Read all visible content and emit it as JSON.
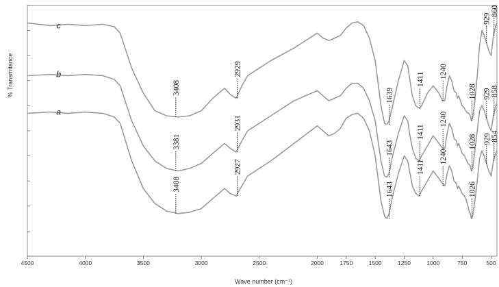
{
  "chart_data": {
    "type": "line",
    "title": "",
    "xlabel": "Wave number (cm⁻¹)",
    "ylabel": "% Transmitance",
    "xlim": [
      4500,
      450
    ],
    "ylim": [
      0,
      100
    ],
    "x_ticks": [
      4500,
      4000,
      3500,
      3000,
      2500,
      2000,
      1750,
      1500,
      1250,
      1000,
      750,
      500
    ],
    "grid": false,
    "series": [
      {
        "name": "c",
        "x": [
          4500,
          4300,
          4150,
          4000,
          3850,
          3750,
          3700,
          3600,
          3500,
          3400,
          3300,
          3200,
          3100,
          3000,
          2900,
          2800,
          2750,
          2700,
          2650,
          2600,
          2400,
          2200,
          2000,
          1950,
          1900,
          1850,
          1800,
          1750,
          1700,
          1650,
          1600,
          1550,
          1500,
          1450,
          1420,
          1400,
          1380,
          1350,
          1300,
          1250,
          1220,
          1200,
          1180,
          1150,
          1120,
          1100,
          1050,
          1000,
          950,
          920,
          900,
          880,
          860,
          840,
          820,
          800,
          790,
          780,
          750,
          730,
          720,
          700,
          690,
          680,
          670,
          660,
          640,
          620,
          600,
          580,
          560,
          540,
          520,
          500,
          480,
          460,
          450
        ],
        "y": [
          93,
          92,
          92.5,
          92,
          92.5,
          91.5,
          89,
          75,
          65,
          58,
          56,
          55.5,
          56,
          58,
          63,
          67,
          64.5,
          63,
          68,
          72,
          78,
          83,
          89,
          87,
          86,
          87,
          88,
          91,
          93,
          93.5,
          92,
          87,
          78,
          60,
          53,
          52.5,
          54,
          60,
          70,
          78,
          76,
          70,
          64,
          60,
          59,
          60,
          65,
          68,
          65,
          62,
          62,
          68,
          72,
          70,
          66,
          65,
          63,
          64,
          60,
          59,
          58,
          57,
          57,
          56,
          54,
          55,
          62,
          72,
          84,
          90,
          88,
          85,
          82,
          80,
          88,
          92,
          93
        ]
      },
      {
        "name": "b",
        "x": [
          4500,
          4300,
          4150,
          4000,
          3850,
          3750,
          3700,
          3600,
          3500,
          3400,
          3300,
          3200,
          3100,
          3000,
          2900,
          2800,
          2750,
          2700,
          2650,
          2600,
          2400,
          2200,
          2000,
          1950,
          1900,
          1850,
          1800,
          1750,
          1700,
          1650,
          1600,
          1550,
          1500,
          1450,
          1420,
          1400,
          1380,
          1350,
          1300,
          1250,
          1220,
          1200,
          1180,
          1150,
          1120,
          1100,
          1050,
          1000,
          950,
          920,
          900,
          880,
          860,
          840,
          820,
          800,
          790,
          780,
          750,
          730,
          720,
          700,
          690,
          680,
          670,
          660,
          640,
          620,
          600,
          580,
          560,
          540,
          520,
          500,
          480,
          460,
          450
        ],
        "y": [
          72,
          72.5,
          72,
          72.5,
          72,
          70.5,
          68,
          54,
          44,
          38,
          35,
          34,
          35,
          37,
          41,
          45,
          43,
          41.5,
          46,
          50,
          56,
          62,
          66,
          64,
          62,
          63,
          64,
          67,
          69,
          69,
          67,
          62,
          54,
          38,
          32,
          31.5,
          33,
          40,
          49,
          56,
          54,
          48,
          43,
          39,
          38,
          40,
          44,
          48,
          45,
          43,
          43,
          49,
          53,
          51,
          47,
          46,
          44,
          45,
          41,
          40,
          39,
          37,
          36.5,
          36,
          34,
          35,
          42,
          50,
          58,
          60,
          58,
          55,
          52,
          50,
          56,
          60,
          61
        ]
      },
      {
        "name": "a",
        "x": [
          4500,
          4300,
          4150,
          4000,
          3850,
          3750,
          3700,
          3600,
          3500,
          3400,
          3300,
          3200,
          3100,
          3000,
          2900,
          2800,
          2750,
          2700,
          2650,
          2600,
          2400,
          2200,
          2000,
          1950,
          1900,
          1850,
          1800,
          1750,
          1700,
          1650,
          1600,
          1550,
          1500,
          1450,
          1420,
          1400,
          1380,
          1350,
          1300,
          1250,
          1220,
          1200,
          1180,
          1150,
          1120,
          1100,
          1050,
          1000,
          950,
          920,
          900,
          880,
          860,
          840,
          820,
          800,
          790,
          780,
          750,
          730,
          720,
          700,
          690,
          680,
          670,
          660,
          640,
          620,
          600,
          580,
          560,
          540,
          520,
          500,
          480,
          460,
          450
        ],
        "y": [
          57,
          57.5,
          57,
          57.5,
          57,
          55.5,
          53,
          38,
          27,
          21,
          18,
          17,
          17.5,
          19,
          23,
          27,
          25,
          24,
          28,
          32,
          38,
          45,
          52,
          50,
          48,
          49,
          51,
          55,
          56.5,
          57,
          55,
          50,
          40,
          22,
          16,
          15,
          17,
          24,
          33,
          40,
          38,
          33,
          28,
          25,
          24,
          26,
          30,
          34,
          31,
          29,
          28,
          33,
          36,
          34,
          30,
          29,
          27,
          28,
          25,
          24,
          23,
          20,
          18,
          17,
          15,
          16,
          22,
          30,
          39,
          42,
          40,
          37,
          34,
          32,
          38,
          41,
          42
        ]
      }
    ],
    "annotations": [
      {
        "series": "c",
        "text": "3408",
        "x": 3220,
        "y": 55.5
      },
      {
        "series": "c",
        "text": "2929",
        "x": 2690,
        "y": 63
      },
      {
        "series": "c",
        "text": "1639",
        "x": 1380,
        "y": 52.5
      },
      {
        "series": "c",
        "text": "1411",
        "x": 1115,
        "y": 59
      },
      {
        "series": "c",
        "text": "1240",
        "x": 915,
        "y": 62
      },
      {
        "series": "c",
        "text": "1028",
        "x": 665,
        "y": 54
      },
      {
        "series": "c",
        "text": "929",
        "x": 540,
        "y": 85
      },
      {
        "series": "c",
        "text": "860",
        "x": 475,
        "y": 88
      },
      {
        "series": "b",
        "text": "3381",
        "x": 3220,
        "y": 34
      },
      {
        "series": "b",
        "text": "2931",
        "x": 2690,
        "y": 41.5
      },
      {
        "series": "b",
        "text": "1643",
        "x": 1380,
        "y": 31.5
      },
      {
        "series": "b",
        "text": "1411",
        "x": 1115,
        "y": 38
      },
      {
        "series": "b",
        "text": "1240",
        "x": 915,
        "y": 43
      },
      {
        "series": "b",
        "text": "1028",
        "x": 665,
        "y": 34
      },
      {
        "series": "b",
        "text": "929",
        "x": 540,
        "y": 55
      },
      {
        "series": "b",
        "text": "858",
        "x": 475,
        "y": 56
      },
      {
        "series": "a",
        "text": "3408",
        "x": 3220,
        "y": 17
      },
      {
        "series": "a",
        "text": "2927",
        "x": 2690,
        "y": 24
      },
      {
        "series": "a",
        "text": "1643",
        "x": 1380,
        "y": 15
      },
      {
        "series": "a",
        "text": "1411",
        "x": 1115,
        "y": 24
      },
      {
        "series": "a",
        "text": "1240",
        "x": 915,
        "y": 28
      },
      {
        "series": "a",
        "text": "1026",
        "x": 665,
        "y": 15
      },
      {
        "series": "a",
        "text": "929",
        "x": 540,
        "y": 37
      },
      {
        "series": "a",
        "text": "854",
        "x": 475,
        "y": 38
      }
    ],
    "colors": {
      "line": "#9a9a9a",
      "text": "#111111",
      "frame": "#8c8c8c"
    }
  }
}
